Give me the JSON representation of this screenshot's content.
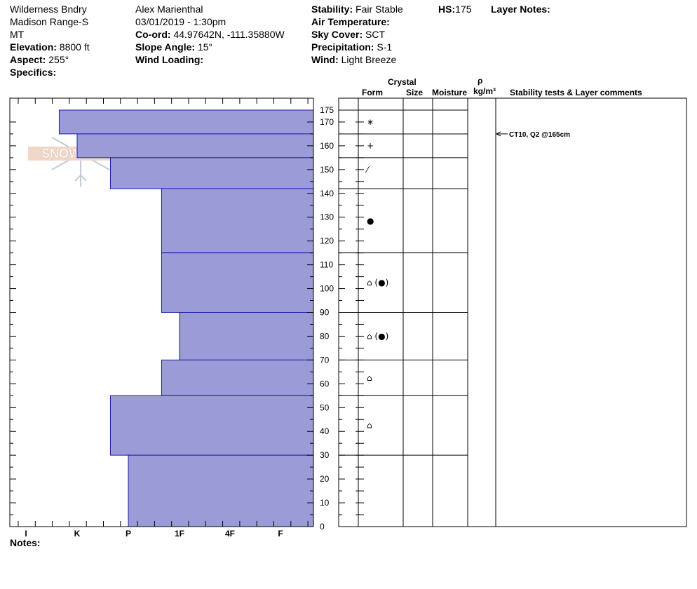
{
  "header": {
    "location": "Wilderness Bndry",
    "range": "Madison Range-S",
    "state": "MT",
    "elevation_label": "Elevation:",
    "elevation_value": "8800 ft",
    "aspect_label": "Aspect:",
    "aspect_value": "255°",
    "specifics_label": "Specifics:",
    "observer": "Alex Marienthal",
    "datetime": "03/01/2019 - 1:30pm",
    "coord_label": "Co-ord:",
    "coord_value": "44.97642N, -111.35880W",
    "slope_label": "Slope Angle:",
    "slope_value": "15°",
    "wind_loading_label": "Wind Loading:",
    "stability_label": "Stability:",
    "stability_value": "Fair Stable",
    "air_temp_label": "Air Temperature:",
    "sky_label": "Sky Cover:",
    "sky_value": "SCT",
    "precip_label": "Precipitation:",
    "precip_value": "S-1",
    "wind_label": "Wind:",
    "wind_value": "Light Breeze",
    "hs_label": "HS:",
    "hs_value": "175",
    "layer_notes_label": "Layer Notes:"
  },
  "columns": {
    "crystal": "Crystal",
    "form": "Form",
    "size": "Size",
    "moisture": "Moisture",
    "rho": "ρ",
    "density_unit": "kg/m³",
    "comments": "Stability tests & Layer comments"
  },
  "logo_text": "SNOW PILOT",
  "notes_label": "Notes:",
  "chart_data": {
    "type": "bar",
    "orientation": "horizontal",
    "x_axis": "hand hardness",
    "x_ticks": [
      "I",
      "K",
      "P",
      "1F",
      "4F",
      "F"
    ],
    "y_ticks": [
      0,
      10,
      20,
      30,
      40,
      50,
      60,
      70,
      80,
      90,
      100,
      110,
      120,
      130,
      140,
      150,
      160,
      170,
      175
    ],
    "ylim": [
      0,
      175
    ],
    "bar_color": "#9b9bd7",
    "layers": [
      {
        "top": 175,
        "bottom": 165,
        "hardness_index": 0.65,
        "form": "*"
      },
      {
        "top": 165,
        "bottom": 155,
        "hardness_index": 1.0,
        "form": "+"
      },
      {
        "top": 155,
        "bottom": 142,
        "hardness_index": 1.65,
        "form": "/"
      },
      {
        "top": 142,
        "bottom": 115,
        "hardness_index": 2.65,
        "form": "●"
      },
      {
        "top": 115,
        "bottom": 90,
        "hardness_index": 2.65,
        "form": "⌂(●)"
      },
      {
        "top": 90,
        "bottom": 70,
        "hardness_index": 3.0,
        "form": "⌂(●)"
      },
      {
        "top": 70,
        "bottom": 55,
        "hardness_index": 2.65,
        "form": "⌂"
      },
      {
        "top": 55,
        "bottom": 30,
        "hardness_index": 1.65,
        "form": "⌂"
      },
      {
        "top": 30,
        "bottom": 0,
        "hardness_index": 2.0,
        "form": ""
      }
    ],
    "form_labels": [
      {
        "depth": 170,
        "text": "∗"
      },
      {
        "depth": 160,
        "text": "+"
      },
      {
        "depth": 150,
        "text": "⁄"
      },
      {
        "depth": 128.5,
        "text": "●"
      },
      {
        "depth": 102.5,
        "text": "⌂ (●)"
      },
      {
        "depth": 80,
        "text": "⌂ (●)"
      },
      {
        "depth": 62.5,
        "text": "⌂"
      },
      {
        "depth": 42.5,
        "text": "⌂"
      }
    ],
    "annotation": {
      "depth": 165,
      "text": "CT10, Q2 @165cm"
    }
  }
}
